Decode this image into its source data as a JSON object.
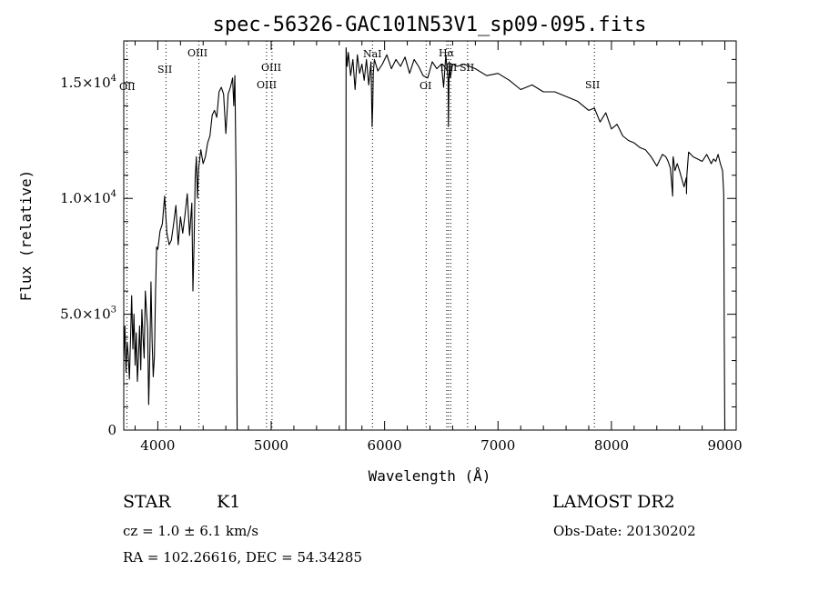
{
  "chart_data": {
    "type": "line",
    "title": "spec-56326-GAC101N53V1_sp09-095.fits",
    "xlabel": "Wavelength (Å)",
    "ylabel": "Flux (relative)",
    "xlim": [
      3700,
      9100
    ],
    "ylim": [
      0,
      16800
    ],
    "xticks": [
      {
        "value": 4000,
        "label": "4000"
      },
      {
        "value": 5000,
        "label": "5000"
      },
      {
        "value": 6000,
        "label": "6000"
      },
      {
        "value": 7000,
        "label": "7000"
      },
      {
        "value": 8000,
        "label": "8000"
      },
      {
        "value": 9000,
        "label": "9000"
      }
    ],
    "yticks": [
      {
        "value": 0,
        "mantissa": "0",
        "exponent": ""
      },
      {
        "value": 5000,
        "mantissa": "5.0×10",
        "exponent": "3"
      },
      {
        "value": 10000,
        "mantissa": "1.0×10",
        "exponent": "4"
      },
      {
        "value": 15000,
        "mantissa": "1.5×10",
        "exponent": "4"
      }
    ],
    "grid": false,
    "series": [
      {
        "x": [
          3700,
          3710,
          3720,
          3730,
          3740,
          3750,
          3760,
          3770,
          3780,
          3790,
          3800,
          3810,
          3820,
          3830,
          3840,
          3850,
          3860,
          3870,
          3880,
          3890,
          3900,
          3910,
          3920,
          3930,
          3940,
          3950,
          3960,
          3970,
          3980,
          3990,
          4000,
          4020,
          4040,
          4060,
          4080,
          4100,
          4120,
          4140,
          4160,
          4180,
          4200,
          4220,
          4240,
          4260,
          4280,
          4300,
          4310,
          4320,
          4330,
          4340,
          4350,
          4360,
          4380,
          4400,
          4420,
          4440,
          4460,
          4480,
          4500,
          4520,
          4540,
          4560,
          4580,
          4600,
          4620,
          4640,
          4660,
          4670,
          4680,
          4690,
          4700,
          4701,
          5659,
          5660,
          5670,
          5680,
          5700,
          5720,
          5740,
          5760,
          5780,
          5800,
          5820,
          5840,
          5860,
          5880,
          5890,
          5895,
          5900,
          5910,
          5940,
          5980,
          6020,
          6060,
          6100,
          6140,
          6180,
          6220,
          6260,
          6300,
          6340,
          6380,
          6420,
          6460,
          6500,
          6520,
          6540,
          6560,
          6563,
          6570,
          6580,
          6600,
          6640,
          6700,
          6800,
          6900,
          7000,
          7100,
          7200,
          7300,
          7400,
          7500,
          7600,
          7700,
          7800,
          7850,
          7900,
          7950,
          8000,
          8050,
          8100,
          8150,
          8200,
          8250,
          8300,
          8350,
          8400,
          8450,
          8480,
          8500,
          8520,
          8540,
          8542,
          8545,
          8560,
          8580,
          8600,
          8640,
          8660,
          8662,
          8665,
          8680,
          8720,
          8760,
          8800,
          8840,
          8880,
          8900,
          8920,
          8940,
          8960,
          8980,
          8990,
          8995,
          9000
        ],
        "values": [
          3000,
          4500,
          2500,
          3800,
          3200,
          2200,
          4000,
          5800,
          3500,
          5000,
          2800,
          4200,
          2100,
          3200,
          4500,
          2600,
          5200,
          4000,
          3100,
          6000,
          5200,
          4400,
          1100,
          3400,
          6400,
          3800,
          2300,
          3200,
          5900,
          7900,
          7800,
          8600,
          8900,
          10100,
          8500,
          8000,
          8200,
          8900,
          9700,
          8000,
          9200,
          8500,
          9300,
          10200,
          8400,
          9800,
          6000,
          8100,
          10900,
          11800,
          10000,
          11300,
          12100,
          11500,
          11800,
          12400,
          12700,
          13600,
          13800,
          13500,
          14600,
          14800,
          14500,
          12800,
          14500,
          14800,
          15200,
          14000,
          15300,
          11000,
          0,
          0,
          0,
          16500,
          15700,
          16300,
          15300,
          16000,
          14700,
          16200,
          15400,
          15800,
          15100,
          16000,
          14900,
          15900,
          13100,
          14000,
          15400,
          16000,
          15500,
          15800,
          16200,
          15600,
          16000,
          15700,
          16100,
          15400,
          16000,
          15700,
          15300,
          15200,
          15900,
          15600,
          15800,
          14800,
          16200,
          15100,
          13100,
          15900,
          15200,
          15800,
          15700,
          15800,
          15600,
          15300,
          15400,
          15100,
          14700,
          14900,
          14600,
          14600,
          14400,
          14200,
          13800,
          13900,
          13300,
          13700,
          13000,
          13200,
          12700,
          12500,
          12400,
          12200,
          12100,
          11800,
          11400,
          11900,
          11800,
          11600,
          11300,
          10100,
          11700,
          11800,
          11200,
          11500,
          11200,
          10500,
          10900,
          10200,
          11000,
          12000,
          11800,
          11700,
          11600,
          11900,
          11500,
          11700,
          11600,
          11900,
          11500,
          11200,
          10200,
          4000,
          0
        ]
      }
    ],
    "lines": [
      {
        "name": "OII",
        "x": 3727
      },
      {
        "name": "SII",
        "x": 4072
      },
      {
        "name": "OIII",
        "x": 4363
      },
      {
        "name": "OIII",
        "x": 4959
      },
      {
        "name": "OIII",
        "x": 5007
      },
      {
        "name": "NaI",
        "x": 5893
      },
      {
        "name": "OI",
        "x": 6366
      },
      {
        "name": "NII",
        "x": 6548
      },
      {
        "name": "Hα",
        "x": 6563
      },
      {
        "name": "NII",
        "x": 6583
      },
      {
        "name": "SII",
        "x": 6731
      },
      {
        "name": "SII",
        "x": 7850
      }
    ],
    "line_label_text": {
      "oii": "OII",
      "sii_4072": "SII",
      "oiii_4363": "OIII",
      "oiii_4959": "OIII",
      "oiii_5007": "OIII",
      "nai": "NaI",
      "oi": "OI",
      "halpha": "Hα",
      "nii": "NII",
      "sii_6731": "SII",
      "sii_7850": "SII"
    }
  },
  "info": {
    "class_label": "STAR",
    "subclass_label": "K1",
    "redshift_text": "cz = 1.0 ± 6.1 km/s",
    "coords_text": "RA = 102.26616, DEC =  54.34285",
    "survey_label": "LAMOST DR2",
    "obs_date_text": "Obs-Date: 20130202"
  }
}
